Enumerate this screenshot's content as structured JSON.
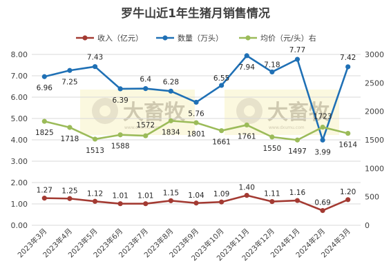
{
  "chart_data": {
    "type": "line",
    "title": "罗牛山近1年生猪月销售情况",
    "categories": [
      "2023年3月",
      "2023年4月",
      "2023年5月",
      "2023年6月",
      "2023年7月",
      "2023年8月",
      "2023年9月",
      "2023年10月",
      "2023年11月",
      "2023年12月",
      "2024年1月",
      "2024年2月",
      "2024年3月"
    ],
    "series": [
      {
        "name": "收入（亿元）",
        "axis": "left",
        "color": "#a33a32",
        "values": [
          1.27,
          1.25,
          1.12,
          1.01,
          1.01,
          1.15,
          1.04,
          1.09,
          1.4,
          1.11,
          1.16,
          0.69,
          1.2
        ],
        "labels": [
          "1.27",
          "1.25",
          "1.12",
          "1.01",
          "1.01",
          "1.15",
          "1.04",
          "1.09",
          "1.40",
          "1.11",
          "1.16",
          "0.69",
          "1.20"
        ]
      },
      {
        "name": "数量（万头）",
        "axis": "left",
        "color": "#1f70b5",
        "values": [
          6.96,
          7.25,
          7.43,
          6.39,
          6.4,
          6.28,
          5.76,
          6.55,
          7.94,
          7.18,
          7.77,
          3.99,
          7.42
        ],
        "labels": [
          "6.96",
          "7.25",
          "7.43",
          "6.39",
          "6.4",
          "6.28",
          "5.76",
          "6.55",
          "7.94",
          "7.18",
          "7.77",
          "3.99",
          "7.42"
        ]
      },
      {
        "name": "均价（元/头）右",
        "axis": "right",
        "color": "#9bbb59",
        "values": [
          1825,
          1718,
          1513,
          1588,
          1572,
          1834,
          1801,
          1661,
          1761,
          1550,
          1497,
          1723,
          1614
        ],
        "labels": [
          "1825",
          "1718",
          "1513",
          "1588",
          "1572",
          "1834",
          "1801",
          "1661",
          "1761",
          "1550",
          "1497",
          "1723",
          "1614"
        ]
      }
    ],
    "y_left": {
      "min": 0,
      "max": 8,
      "ticks": [
        "0.00",
        "1.00",
        "2.00",
        "3.00",
        "4.00",
        "5.00",
        "6.00",
        "7.00",
        "8.00"
      ]
    },
    "y_right": {
      "min": 0,
      "max": 3000,
      "ticks": [
        "0",
        "500",
        "1000",
        "1500",
        "2000",
        "2500",
        "3000"
      ]
    },
    "grid": true,
    "legend_position": "top"
  },
  "watermark": {
    "text": "大畜牧",
    "url": "www.dxumu.com"
  }
}
